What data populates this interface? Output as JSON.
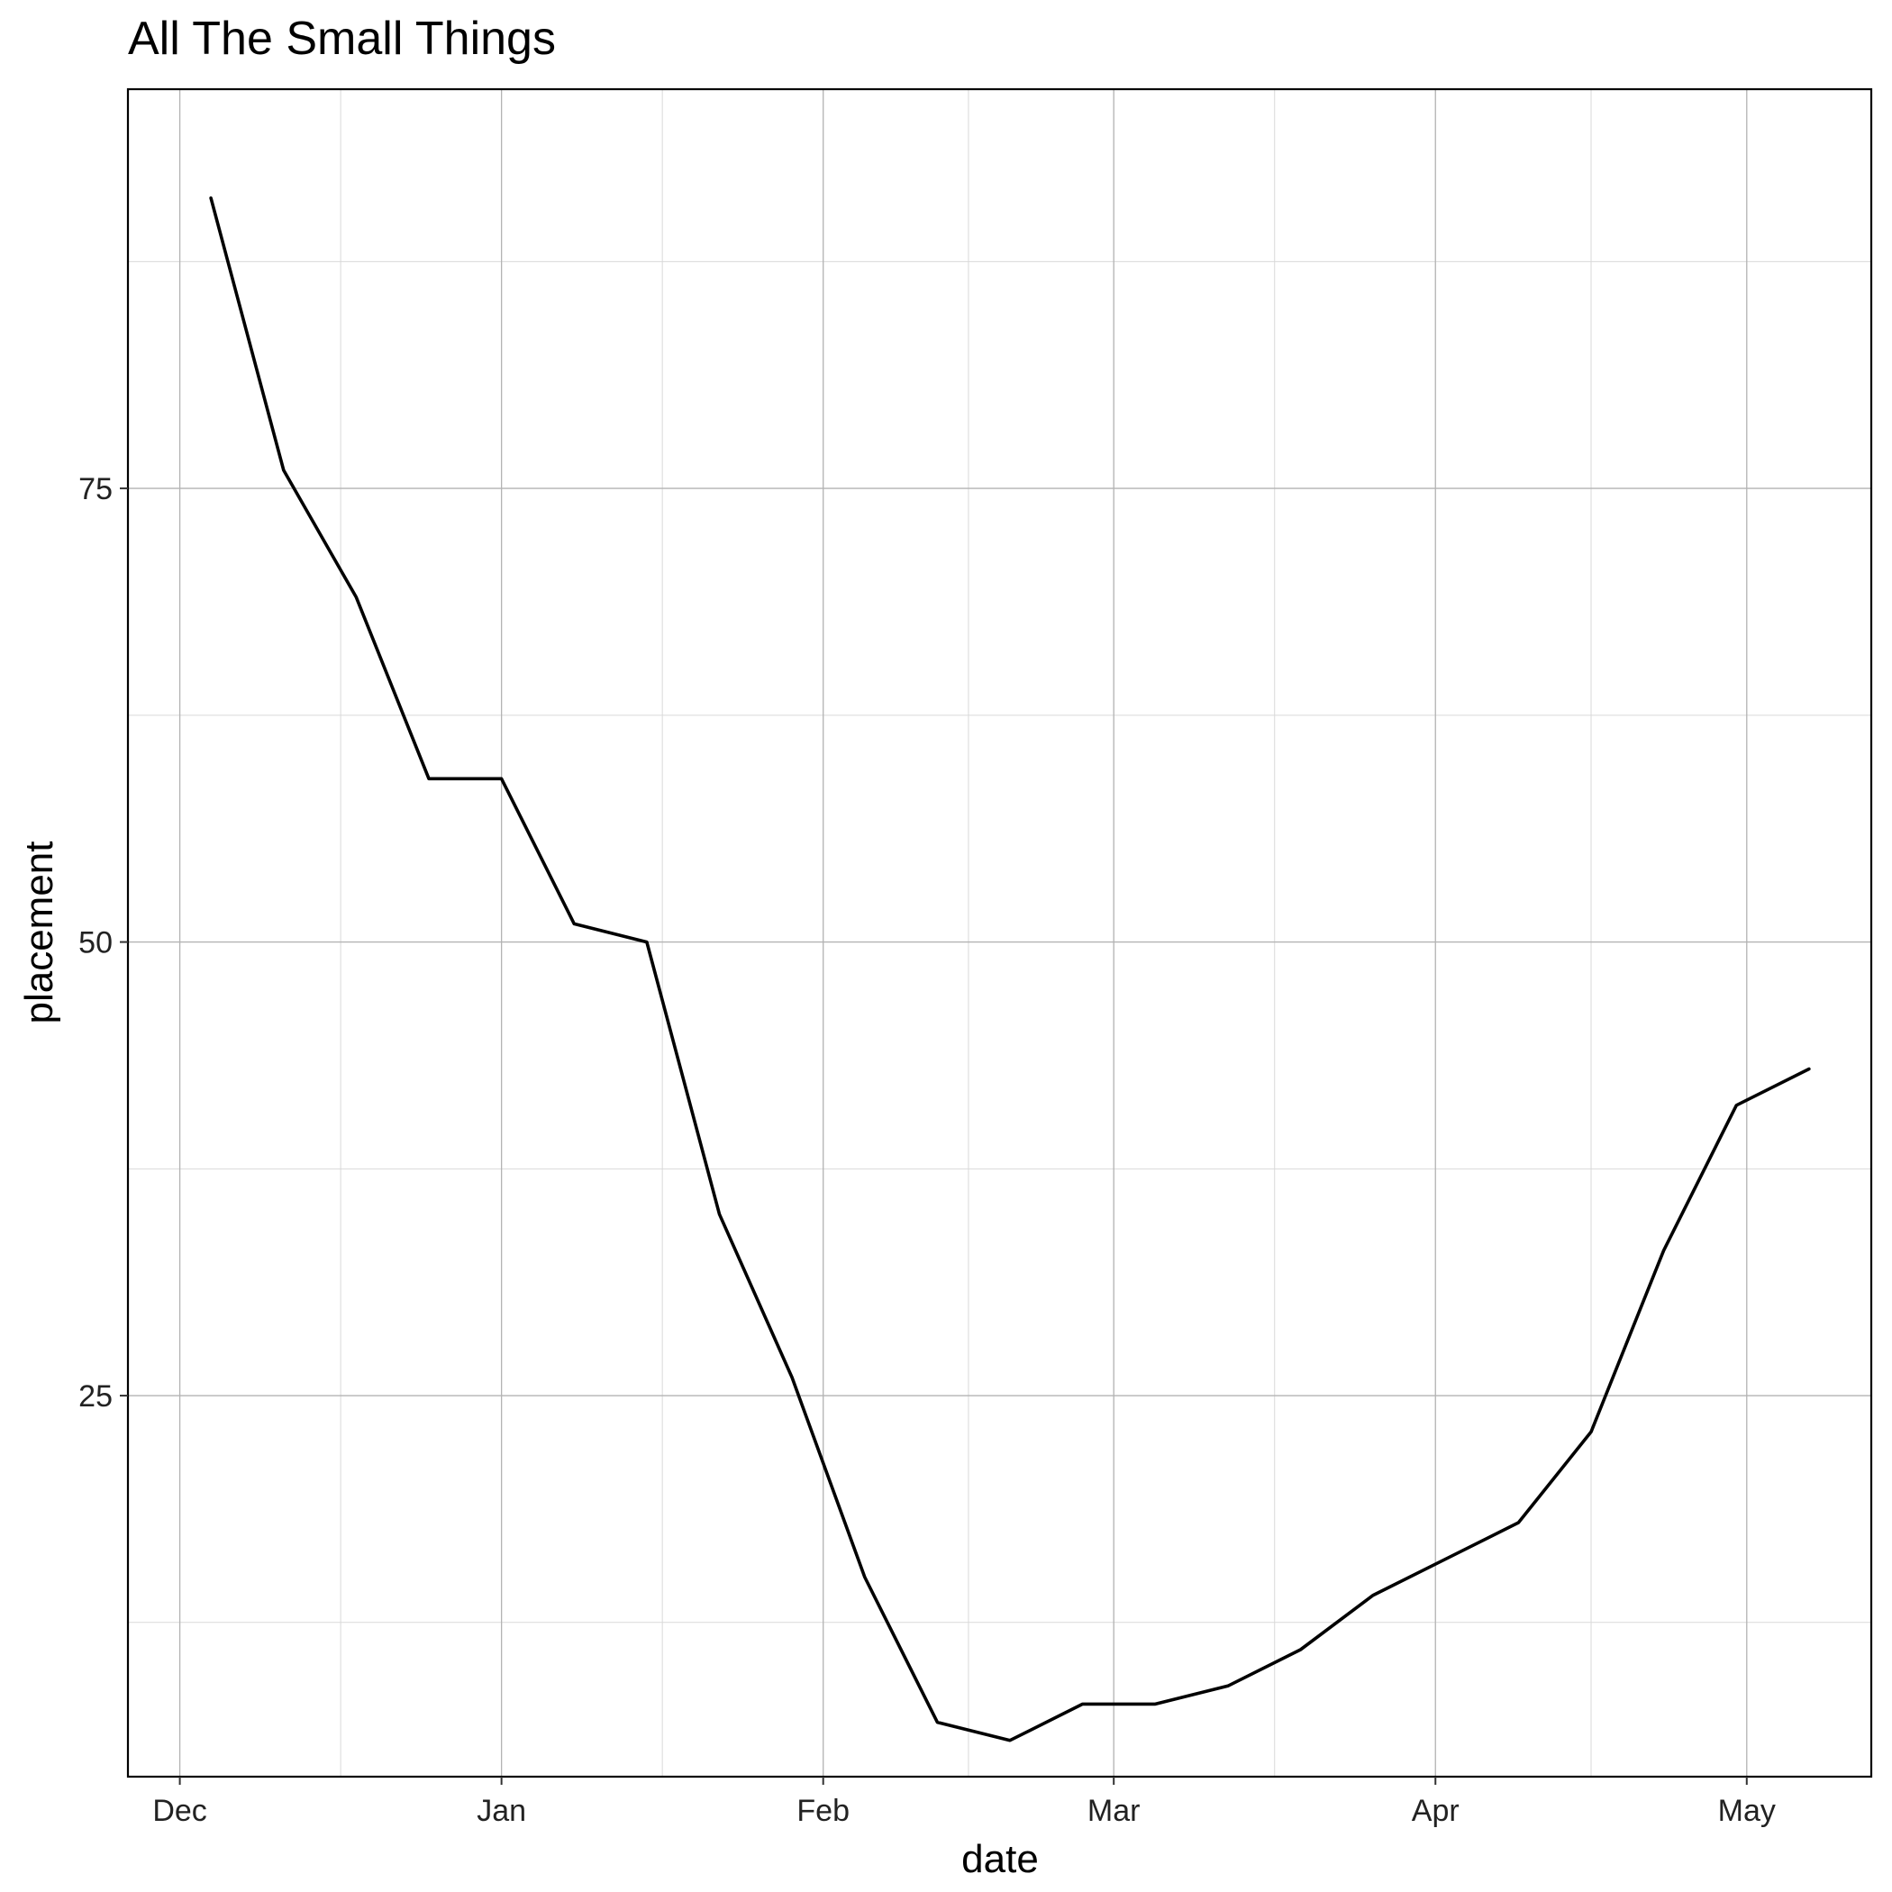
{
  "chart_data": {
    "type": "line",
    "title": "All The Small Things",
    "xlabel": "date",
    "ylabel": "placement",
    "x_ticks": [
      {
        "date": "2000-12-01",
        "label": "Dec"
      },
      {
        "date": "2001-01-01",
        "label": "Jan"
      },
      {
        "date": "2001-02-01",
        "label": "Feb"
      },
      {
        "date": "2001-03-01",
        "label": "Mar"
      },
      {
        "date": "2001-04-01",
        "label": "Apr"
      },
      {
        "date": "2001-05-01",
        "label": "May"
      }
    ],
    "y_ticks": [
      25,
      50,
      75
    ],
    "ylim": [
      4,
      97
    ],
    "xlim": [
      "2000-11-26",
      "2001-05-13"
    ],
    "grid": true,
    "series": [
      {
        "color": "#000000",
        "x": [
          "2000-12-04",
          "2000-12-11",
          "2000-12-18",
          "2000-12-25",
          "2001-01-01",
          "2001-01-08",
          "2001-01-15",
          "2001-01-22",
          "2001-01-29",
          "2001-02-05",
          "2001-02-12",
          "2001-02-19",
          "2001-02-26",
          "2001-03-05",
          "2001-03-12",
          "2001-03-19",
          "2001-03-26",
          "2001-04-02",
          "2001-04-09",
          "2001-04-16",
          "2001-04-23",
          "2001-04-30",
          "2001-05-07"
        ],
        "values": [
          91,
          76,
          69,
          59,
          59,
          51,
          50,
          35,
          26,
          15,
          7,
          6,
          8,
          8,
          9,
          11,
          14,
          16,
          18,
          23,
          33,
          41,
          43
        ]
      }
    ]
  }
}
